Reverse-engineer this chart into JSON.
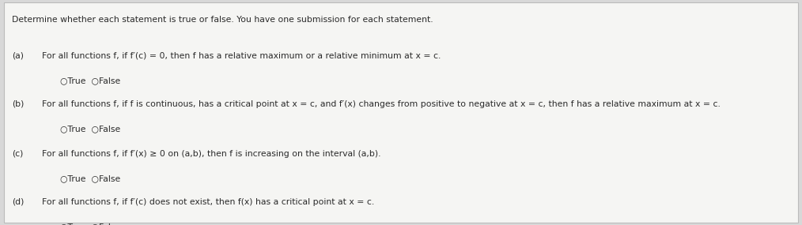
{
  "background_color": "#d8d8d8",
  "panel_color": "#f5f5f3",
  "text_color": "#2a2a2a",
  "border_color": "#bbbbbb",
  "title": "Determine whether each statement is true or false. You have one submission for each statement.",
  "statements": [
    {
      "label": "(a)",
      "text": "For all functions f, if f′(c) = 0, then f has a relative maximum or a relative minimum at x = c.",
      "radio_line": "○True  ○False"
    },
    {
      "label": "(b)",
      "text": "For all functions f, if f is continuous, has a critical point at x = c, and f′(x) changes from positive to negative at x = c, then f has a relative maximum at x = c.",
      "radio_line": "○True  ○False"
    },
    {
      "label": "(c)",
      "text": "For all functions f, if f′(x) ≥ 0 on (a,b), then f is increasing on the interval (a,b).",
      "radio_line": "○True  ○False"
    },
    {
      "label": "(d)",
      "text": "For all functions f, if f′(c) does not exist, then f(x) has a critical point at x = c.",
      "radio_line": "○True  ○False"
    }
  ],
  "title_fontsize": 7.8,
  "label_fontsize": 7.8,
  "text_fontsize": 7.8,
  "radio_fontsize": 7.8,
  "figsize": [
    10.14,
    2.85
  ],
  "dpi": 100
}
